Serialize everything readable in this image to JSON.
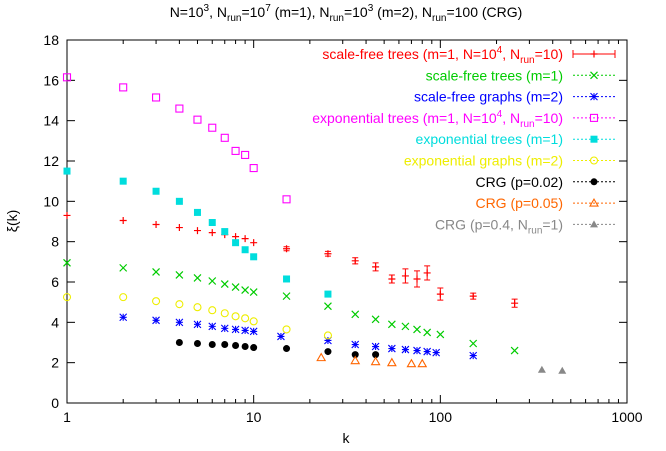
{
  "chart_data": {
    "type": "scatter",
    "title": "N=10³, N_run=10⁷ (m=1), N_run=10³ (m=2), N_run=100 (CRG)",
    "title_parts": [
      "N=10",
      "3",
      ", N",
      "run",
      "=10",
      "7",
      " (m=1), N",
      "run",
      "=10",
      "3",
      " (m=2), N",
      "run",
      "=100 (CRG)"
    ],
    "xlabel": "k",
    "ylabel": "ξ(k)",
    "xscale": "log",
    "xlim": [
      1,
      1000
    ],
    "ylim": [
      0,
      18
    ],
    "x_ticks": [
      1,
      10,
      100,
      1000
    ],
    "x_tick_labels": [
      "1",
      "10",
      "100",
      "1000"
    ],
    "y_ticks": [
      0,
      2,
      4,
      6,
      8,
      10,
      12,
      14,
      16,
      18
    ],
    "y_tick_labels": [
      "0",
      "2",
      "4",
      "6",
      "8",
      "10",
      "12",
      "14",
      "16",
      "18"
    ],
    "grid": false,
    "legend_position": "top-right",
    "series": [
      {
        "name": "scale-free trees (m=1, N=10⁴, N_run=10)",
        "legend_parts": [
          "scale-free trees (m=1, N=10",
          "4",
          ", N",
          "run",
          "=10)"
        ],
        "color": "#ff0000",
        "marker": "plus",
        "errorbars": true,
        "x": [
          1,
          2,
          3,
          4,
          5,
          6,
          7,
          8,
          9,
          10,
          15,
          25,
          35,
          45,
          55,
          65,
          75,
          85,
          100,
          150,
          250
        ],
        "y": [
          9.3,
          9.05,
          8.85,
          8.7,
          8.55,
          8.45,
          8.35,
          8.25,
          8.15,
          7.95,
          7.65,
          7.4,
          7.05,
          6.75,
          6.15,
          6.3,
          6.15,
          6.45,
          5.4,
          5.3,
          4.95
        ],
        "err": [
          0,
          0,
          0,
          0,
          0,
          0,
          0,
          0,
          0,
          0,
          0.1,
          0.12,
          0.15,
          0.2,
          0.2,
          0.35,
          0.4,
          0.35,
          0.3,
          0.15,
          0.2
        ]
      },
      {
        "name": "scale-free trees (m=1)",
        "legend_parts": [
          "scale-free trees (m=1)"
        ],
        "color": "#00cc00",
        "marker": "x",
        "errorbars": false,
        "x": [
          1,
          2,
          3,
          4,
          5,
          6,
          7,
          8,
          9,
          10,
          15,
          25,
          35,
          45,
          55,
          65,
          75,
          85,
          100,
          150,
          250
        ],
        "y": [
          6.95,
          6.7,
          6.5,
          6.35,
          6.2,
          6.05,
          5.9,
          5.75,
          5.6,
          5.5,
          5.3,
          4.8,
          4.4,
          4.15,
          3.9,
          3.8,
          3.65,
          3.5,
          3.4,
          2.95,
          2.6
        ]
      },
      {
        "name": "scale-free graphs (m=2)",
        "legend_parts": [
          "scale-free graphs (m=2)"
        ],
        "color": "#0000ff",
        "marker": "asterisk",
        "errorbars": false,
        "x": [
          2,
          3,
          4,
          5,
          6,
          7,
          8,
          9,
          10,
          14,
          25,
          35,
          45,
          55,
          65,
          75,
          85,
          95,
          150
        ],
        "y": [
          4.25,
          4.1,
          4.0,
          3.9,
          3.8,
          3.7,
          3.65,
          3.6,
          3.55,
          3.3,
          3.1,
          2.9,
          2.8,
          2.7,
          2.65,
          2.6,
          2.55,
          2.5,
          2.35
        ]
      },
      {
        "name": "exponential trees (m=1, N=10⁴, N_run=10)",
        "legend_parts": [
          "exponential trees (m=1, N=10",
          "4",
          ", N",
          "run",
          "=10)"
        ],
        "color": "#ff00ff",
        "marker": "square-open",
        "errorbars": false,
        "x": [
          1,
          2,
          3,
          4,
          5,
          6,
          7,
          8,
          9,
          10,
          15
        ],
        "y": [
          16.15,
          15.65,
          15.15,
          14.6,
          14.05,
          13.65,
          13.15,
          12.5,
          12.3,
          11.65,
          10.1
        ]
      },
      {
        "name": "exponential trees (m=1)",
        "legend_parts": [
          "exponential trees (m=1)"
        ],
        "color": "#00dddd",
        "marker": "square-filled",
        "errorbars": false,
        "x": [
          1,
          2,
          3,
          4,
          5,
          6,
          7,
          8,
          9,
          10,
          15,
          25
        ],
        "y": [
          11.5,
          11.0,
          10.5,
          10.0,
          9.45,
          8.95,
          8.5,
          7.95,
          7.6,
          7.25,
          6.15,
          5.4
        ]
      },
      {
        "name": "exponential graphs (m=2)",
        "legend_parts": [
          "exponential graphs (m=2)"
        ],
        "color": "#eeee00",
        "marker": "circle-open",
        "errorbars": false,
        "x": [
          1,
          2,
          3,
          4,
          5,
          6,
          7,
          8,
          9,
          10,
          15,
          25
        ],
        "y": [
          5.25,
          5.25,
          5.05,
          4.9,
          4.75,
          4.6,
          4.45,
          4.3,
          4.2,
          4.05,
          3.65,
          3.35
        ]
      },
      {
        "name": "CRG (p=0.02)",
        "legend_parts": [
          "CRG (p=0.02)"
        ],
        "color": "#000000",
        "marker": "circle-filled",
        "errorbars": false,
        "x": [
          4,
          5,
          6,
          7,
          8,
          9,
          10,
          15,
          25,
          35,
          45
        ],
        "y": [
          3.0,
          2.95,
          2.9,
          2.9,
          2.85,
          2.8,
          2.75,
          2.7,
          2.55,
          2.4,
          2.4
        ]
      },
      {
        "name": "CRG (p=0.05)",
        "legend_parts": [
          "CRG (p=0.05)"
        ],
        "color": "#ff6600",
        "marker": "triangle-open",
        "errorbars": false,
        "x": [
          23,
          35,
          45,
          55,
          70,
          80
        ],
        "y": [
          2.25,
          2.1,
          2.05,
          2.0,
          1.95,
          1.95
        ]
      },
      {
        "name": "CRG (p=0.4, N_run=1)",
        "legend_parts": [
          "CRG (p=0.4, N",
          "run",
          "=1)"
        ],
        "color": "#888888",
        "marker": "triangle-filled",
        "errorbars": false,
        "x": [
          350,
          450
        ],
        "y": [
          1.65,
          1.6
        ]
      }
    ]
  }
}
